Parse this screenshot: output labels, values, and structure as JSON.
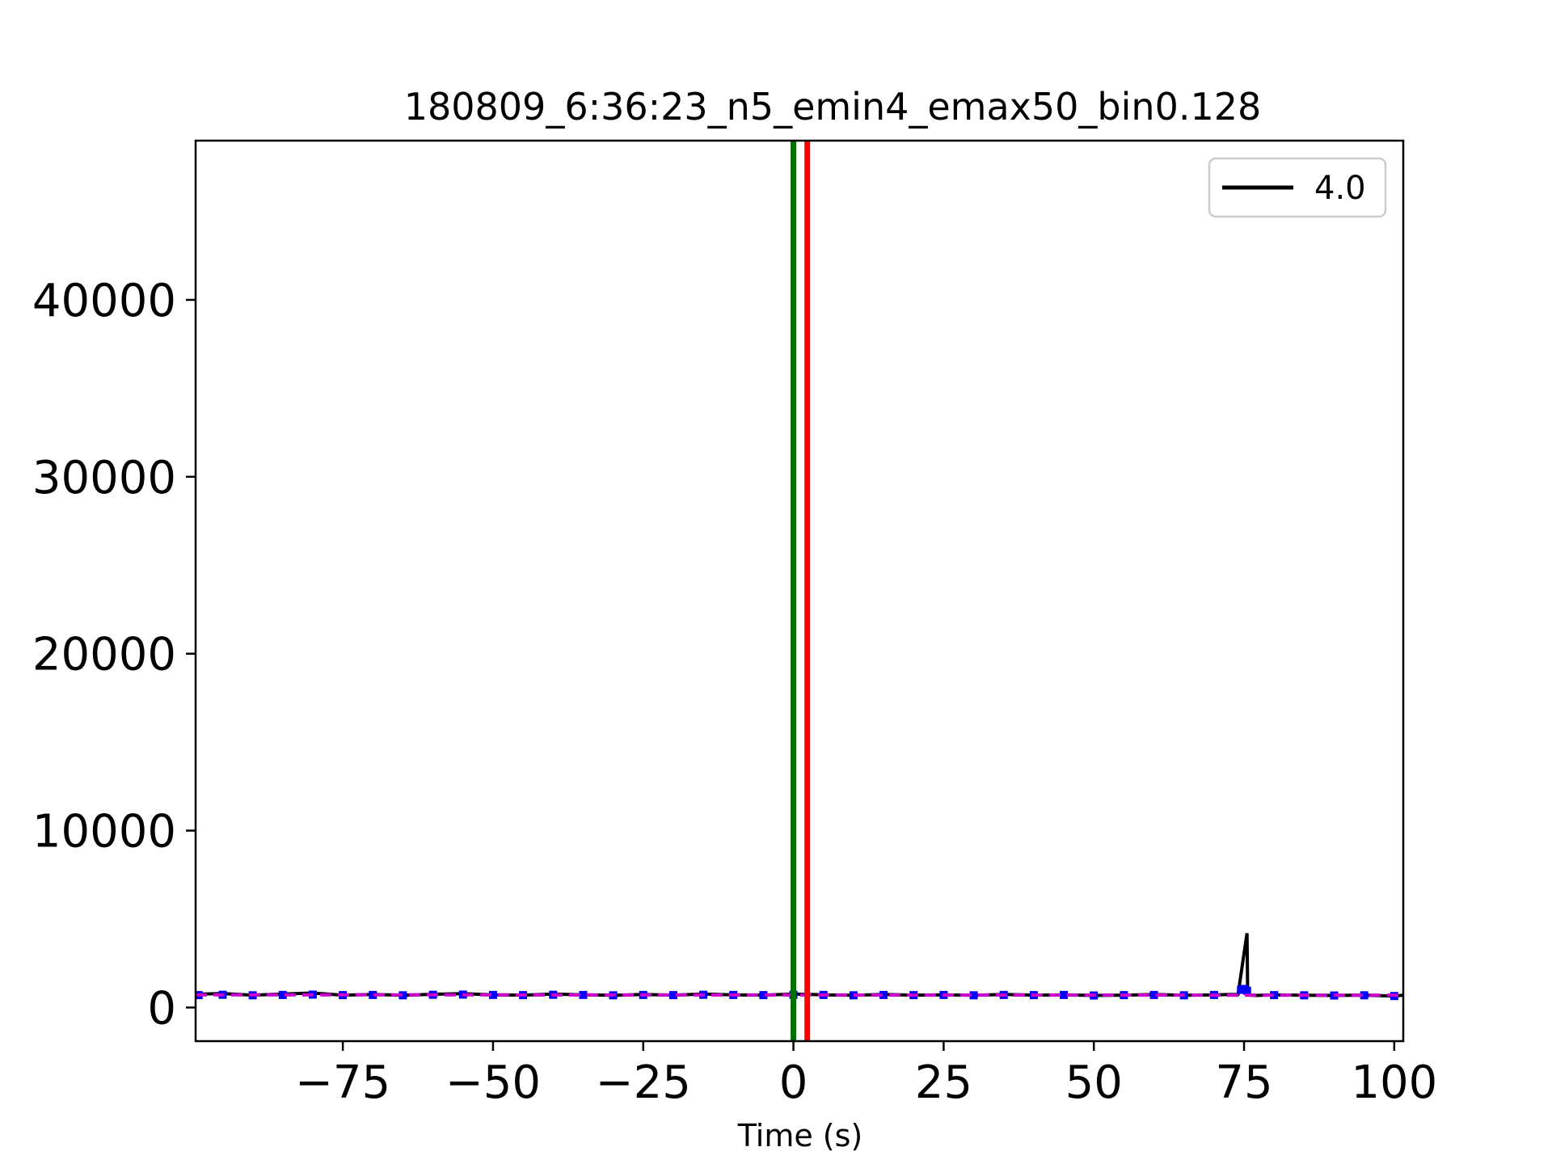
{
  "chart_data": {
    "type": "line",
    "title": "180809_6:36:23_n5_emin4_emax50_bin0.128",
    "xlabel": "Time (s)",
    "ylabel": "",
    "xlim": [
      -99.5,
      101.5
    ],
    "ylim": [
      -1900,
      49000
    ],
    "xticks": [
      -75,
      -50,
      -25,
      0,
      25,
      50,
      75,
      100
    ],
    "xtick_labels": [
      "−75",
      "−50",
      "−25",
      "0",
      "25",
      "50",
      "75",
      "100"
    ],
    "yticks": [
      0,
      10000,
      20000,
      30000,
      40000
    ],
    "ytick_labels": [
      "0",
      "10000",
      "20000",
      "30000",
      "40000"
    ],
    "grid": false,
    "legend": {
      "placement": "top-right",
      "entries": [
        {
          "label": "4.0",
          "color": "#000000"
        }
      ]
    },
    "series": [
      {
        "name": "4.0",
        "color": "#000000",
        "style": "line",
        "x": [
          -99.5,
          -95,
          -90,
          -85,
          -80,
          -75,
          -70,
          -65,
          -60,
          -55,
          -50,
          -45,
          -40,
          -35,
          -30,
          -25,
          -20,
          -15,
          -10,
          -5,
          0,
          5,
          10,
          15,
          20,
          25,
          30,
          35,
          40,
          45,
          50,
          55,
          60,
          65,
          70,
          74,
          75.5,
          75.6,
          76,
          77,
          80,
          85,
          90,
          95,
          100,
          101.5
        ],
        "y": [
          750,
          790,
          700,
          760,
          820,
          700,
          740,
          690,
          750,
          780,
          720,
          700,
          760,
          720,
          690,
          740,
          700,
          760,
          720,
          700,
          760,
          720,
          690,
          740,
          700,
          720,
          690,
          740,
          700,
          720,
          680,
          700,
          740,
          690,
          720,
          740,
          4200,
          750,
          700,
          680,
          720,
          690,
          680,
          700,
          650,
          700
        ]
      },
      {
        "color": "#0000ff",
        "style": "scatter",
        "x": [
          -99,
          -95,
          -90,
          -85,
          -80,
          -75,
          -70,
          -65,
          -60,
          -55,
          -50,
          -45,
          -40,
          -35,
          -30,
          -25,
          -20,
          -15,
          -10,
          -5,
          0,
          5,
          10,
          15,
          20,
          25,
          30,
          35,
          40,
          45,
          50,
          55,
          60,
          65,
          70,
          74.5,
          75,
          75.5,
          80,
          85,
          90,
          95,
          100
        ],
        "y": [
          700,
          720,
          690,
          710,
          730,
          700,
          710,
          690,
          720,
          730,
          710,
          700,
          720,
          710,
          690,
          710,
          700,
          720,
          710,
          700,
          720,
          710,
          690,
          710,
          700,
          710,
          690,
          710,
          700,
          710,
          680,
          700,
          710,
          690,
          710,
          1000,
          1050,
          950,
          700,
          690,
          680,
          690,
          650
        ]
      },
      {
        "color": "#cc00cc",
        "style": "dashed",
        "x": [
          -99.5,
          -75,
          -50,
          -25,
          0,
          25,
          50,
          75,
          101.5
        ],
        "y": [
          720,
          715,
          712,
          710,
          708,
          705,
          703,
          700,
          698
        ]
      }
    ],
    "vlines": [
      {
        "x": 0,
        "color": "#007000"
      },
      {
        "x": 2.3,
        "color": "#ff0000"
      }
    ]
  }
}
